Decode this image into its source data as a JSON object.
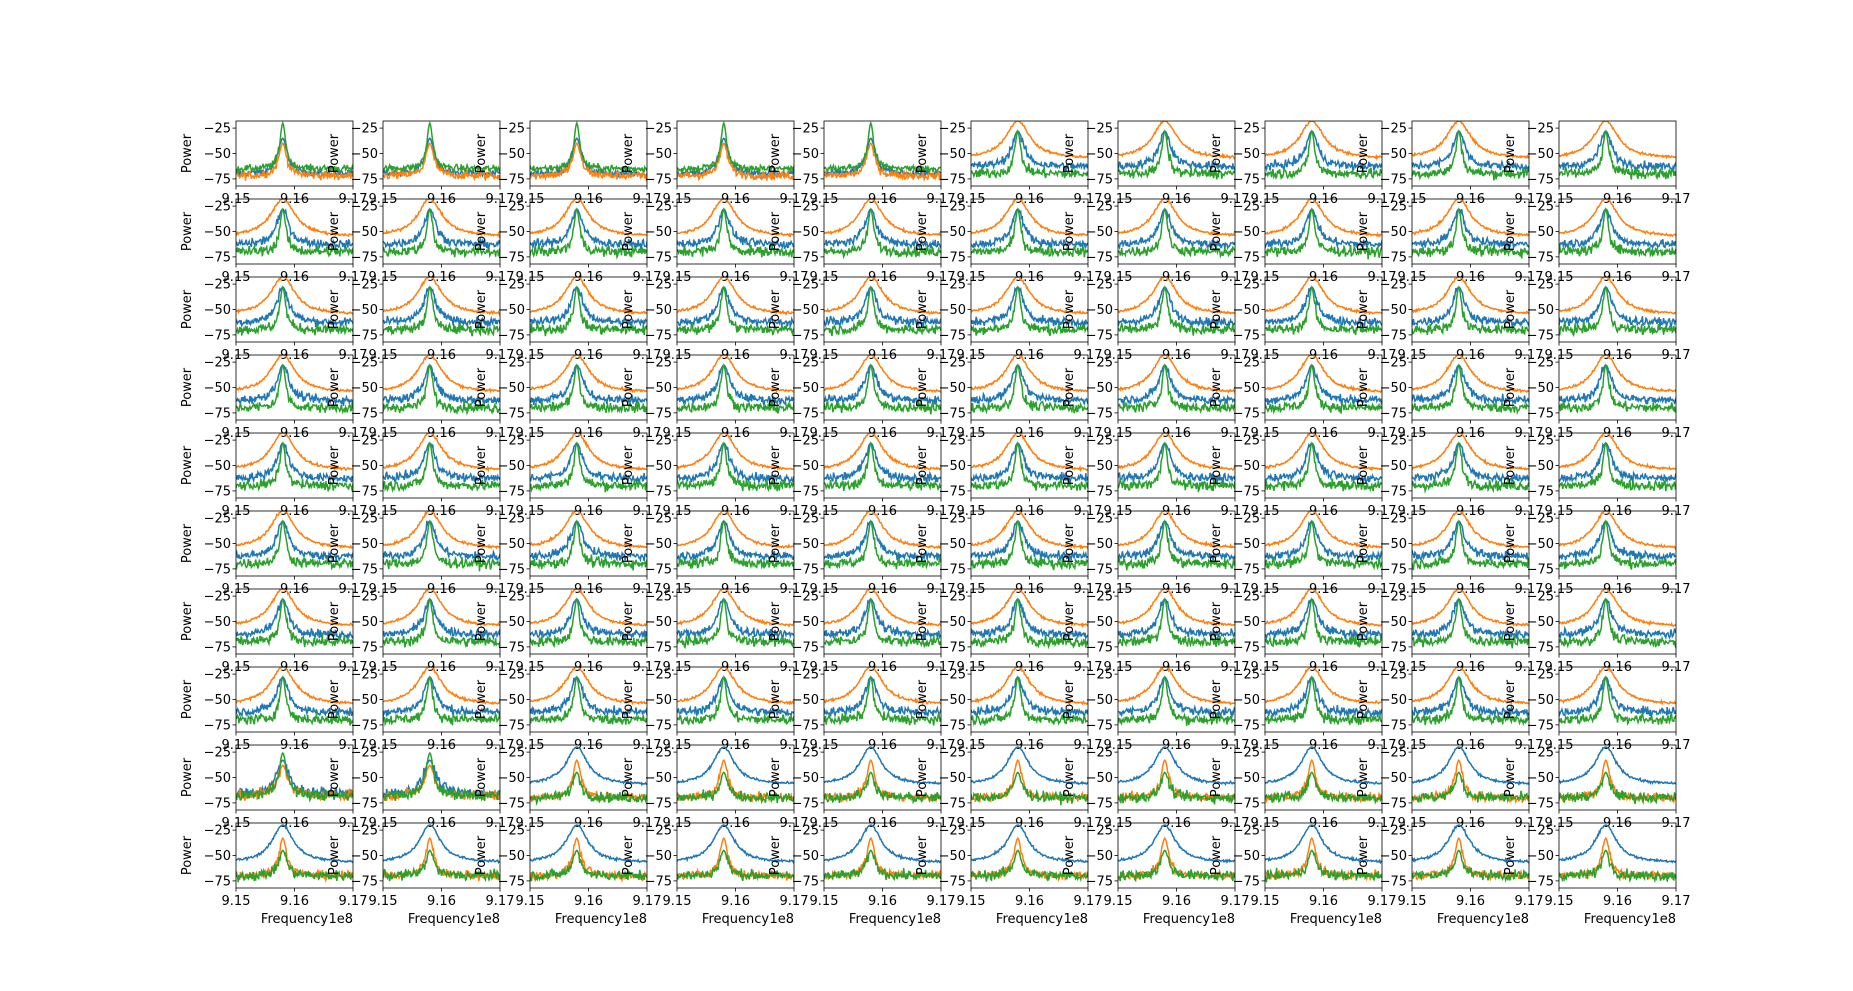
{
  "figure": {
    "rows": 10,
    "cols": 10,
    "ylabel": "Power",
    "xlabel": "Frequency",
    "x_offset_label": "1e8"
  },
  "chart_data": {
    "type": "line",
    "layout": "10x10 grid of identical-axis subplots",
    "x": {
      "min": 9.15,
      "max": 9.17,
      "units_multiplier": "1e8",
      "ticks": [
        9.15,
        9.16,
        9.17
      ],
      "tick_labels": [
        "9.15",
        "9.16",
        "9.17"
      ]
    },
    "y": {
      "min": -82,
      "max": -18,
      "ticks": [
        -25,
        -50,
        -75
      ],
      "tick_labels": [
        "−25",
        "−50",
        "−75"
      ]
    },
    "peak_x": 9.158,
    "series_colors": [
      "#1f77b4",
      "#ff7f0e",
      "#2ca02c"
    ],
    "series": [
      {
        "color": "#1f77b4",
        "peak": -28,
        "floor": -63,
        "width": 0.0012,
        "noise": 5
      },
      {
        "color": "#ff7f0e",
        "peak": -18,
        "floor": -55,
        "width": 0.0025,
        "noise": 1.5
      },
      {
        "color": "#2ca02c",
        "peak": -28,
        "floor": -70,
        "width": 0.0006,
        "noise": 6
      }
    ],
    "panel_groups": {
      "rows0_cols0to4": "green peak highest; blue and orange noisy near -70",
      "rows0to7_other": "orange broad and highest; blue mid; green noisy lower",
      "row8_cols0to1": "all three noisy, peaks similar",
      "rows8to9_other": "blue broad and highest; orange and green noisy near -70"
    }
  }
}
